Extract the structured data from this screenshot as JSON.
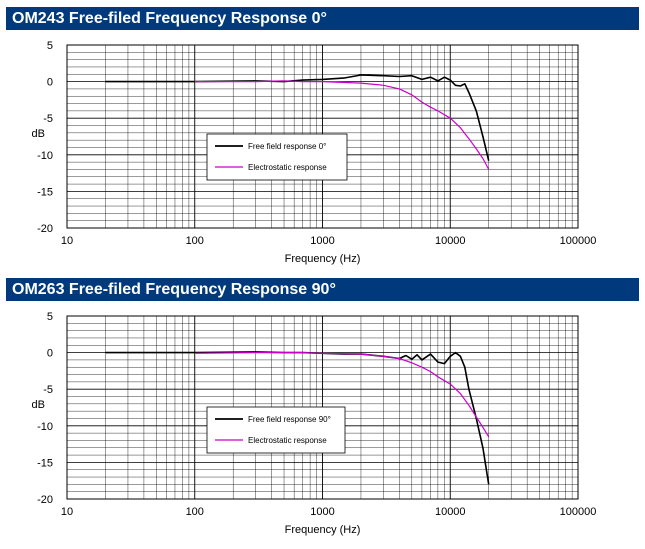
{
  "chart_data": [
    {
      "type": "line",
      "title": "OM243 Free-filed Frequency Response 0°",
      "xlabel": "Frequency (Hz)",
      "ylabel": "dB",
      "xscale": "log",
      "xlim": [
        10,
        100000
      ],
      "ylim": [
        -20,
        5
      ],
      "xticks": [
        "10",
        "100",
        "1000",
        "10000",
        "100000"
      ],
      "yticks": [
        "5",
        "0",
        "-5",
        "-10",
        "-15",
        "-20"
      ],
      "grid": true,
      "legend_position": "center",
      "series": [
        {
          "name": "Free field response 0°",
          "color": "#000000",
          "points": [
            [
              20,
              0
            ],
            [
              100,
              0
            ],
            [
              300,
              0.1
            ],
            [
              500,
              0
            ],
            [
              700,
              0.2
            ],
            [
              1000,
              0.3
            ],
            [
              1500,
              0.5
            ],
            [
              2000,
              0.9
            ],
            [
              3000,
              0.8
            ],
            [
              4000,
              0.7
            ],
            [
              5000,
              0.8
            ],
            [
              6000,
              0.3
            ],
            [
              7000,
              0.6
            ],
            [
              8000,
              0.1
            ],
            [
              9000,
              0.6
            ],
            [
              10000,
              0.2
            ],
            [
              11000,
              -0.5
            ],
            [
              12000,
              -0.6
            ],
            [
              13000,
              -0.3
            ],
            [
              14000,
              -1.5
            ],
            [
              16000,
              -4
            ],
            [
              18000,
              -7.5
            ],
            [
              20000,
              -10.8
            ]
          ]
        },
        {
          "name": "Electrostatic response",
          "color": "#cc00cc",
          "points": [
            [
              100,
              0
            ],
            [
              300,
              0
            ],
            [
              500,
              0.1
            ],
            [
              700,
              0
            ],
            [
              1000,
              0
            ],
            [
              2000,
              -0.2
            ],
            [
              3000,
              -0.5
            ],
            [
              4000,
              -1
            ],
            [
              5000,
              -1.8
            ],
            [
              6000,
              -2.8
            ],
            [
              7000,
              -3.5
            ],
            [
              8000,
              -4
            ],
            [
              10000,
              -5
            ],
            [
              12000,
              -6.3
            ],
            [
              14000,
              -7.8
            ],
            [
              16000,
              -9.2
            ],
            [
              18000,
              -10.5
            ],
            [
              20000,
              -12
            ]
          ]
        }
      ]
    },
    {
      "type": "line",
      "title": "OM263 Free-filed Frequency Response 90°",
      "xlabel": "Frequency (Hz)",
      "ylabel": "dB",
      "xscale": "log",
      "xlim": [
        10,
        100000
      ],
      "ylim": [
        -20,
        5
      ],
      "xticks": [
        "10",
        "100",
        "1000",
        "10000",
        "100000"
      ],
      "yticks": [
        "5",
        "0",
        "-5",
        "-10",
        "-15",
        "-20"
      ],
      "grid": true,
      "legend_position": "center",
      "series": [
        {
          "name": "Free field response 90°",
          "color": "#000000",
          "points": [
            [
              20,
              0
            ],
            [
              100,
              0
            ],
            [
              300,
              0.1
            ],
            [
              500,
              0
            ],
            [
              700,
              0
            ],
            [
              1000,
              -0.1
            ],
            [
              1500,
              -0.2
            ],
            [
              2000,
              -0.2
            ],
            [
              3000,
              -0.5
            ],
            [
              4000,
              -0.8
            ],
            [
              4500,
              -0.4
            ],
            [
              5000,
              -0.9
            ],
            [
              5500,
              -0.3
            ],
            [
              6000,
              -1
            ],
            [
              7000,
              -0.2
            ],
            [
              8000,
              -1.3
            ],
            [
              9000,
              -1.5
            ],
            [
              10000,
              -0.5
            ],
            [
              11000,
              0
            ],
            [
              12000,
              -0.5
            ],
            [
              13000,
              -2
            ],
            [
              14000,
              -5
            ],
            [
              16000,
              -9
            ],
            [
              18000,
              -13
            ],
            [
              20000,
              -18
            ]
          ]
        },
        {
          "name": "Electrostatic response",
          "color": "#cc00cc",
          "points": [
            [
              100,
              -0.1
            ],
            [
              300,
              0
            ],
            [
              500,
              0
            ],
            [
              700,
              0
            ],
            [
              1000,
              -0.1
            ],
            [
              2000,
              -0.2
            ],
            [
              3000,
              -0.5
            ],
            [
              4000,
              -0.8
            ],
            [
              5000,
              -1.4
            ],
            [
              6000,
              -2
            ],
            [
              7000,
              -2.6
            ],
            [
              8000,
              -3.3
            ],
            [
              10000,
              -4.3
            ],
            [
              12000,
              -5.6
            ],
            [
              14000,
              -7.2
            ],
            [
              16000,
              -8.8
            ],
            [
              18000,
              -10.2
            ],
            [
              20000,
              -11.5
            ]
          ]
        }
      ]
    }
  ]
}
